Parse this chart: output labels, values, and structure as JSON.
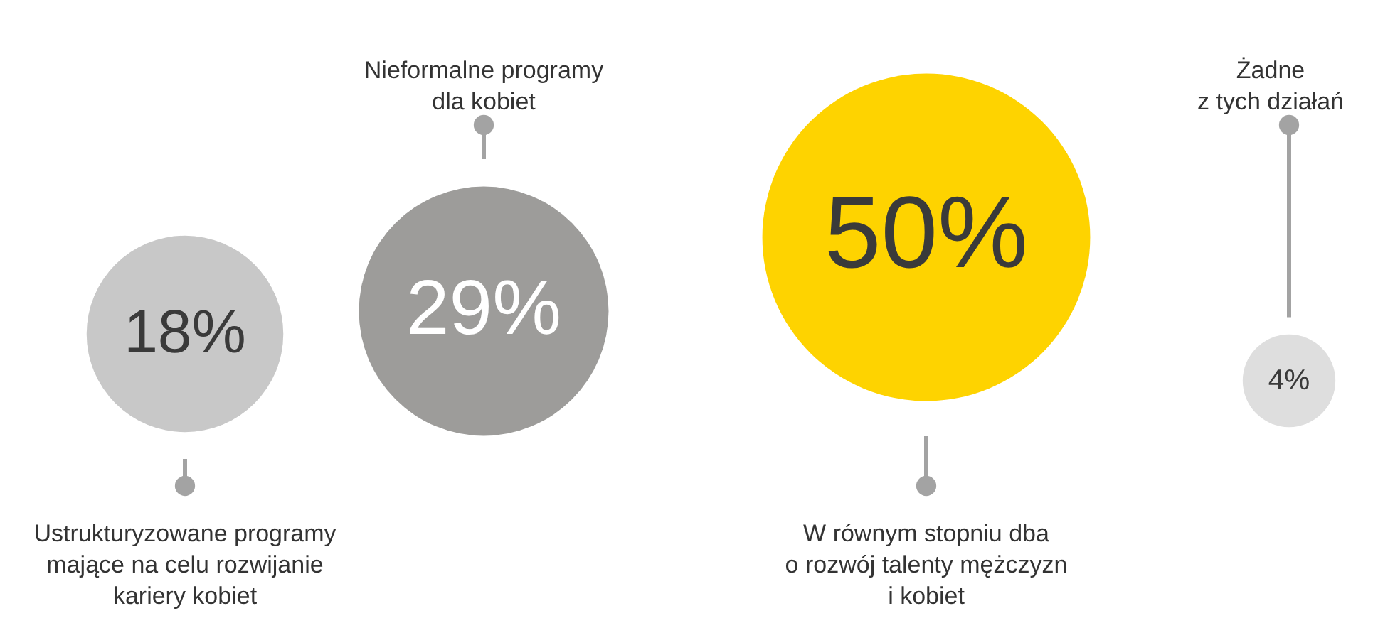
{
  "chart_data": {
    "type": "other",
    "categories": [
      "Ustrukturyzowane programy\nmające na celu rozwijanie\nkariery kobiet",
      "Nieformalne programy\ndla kobiet",
      "W równym stopniu dba\no rozwój talenty mężczyzn\ni kobiet",
      "Żadne\nz tych działań"
    ],
    "values": [
      18,
      29,
      50,
      4
    ],
    "value_labels": [
      "18%",
      "29%",
      "50%",
      "4%"
    ],
    "colors": [
      "#c8c8c8",
      "#9d9c9a",
      "#fed300",
      "#dedede"
    ]
  }
}
